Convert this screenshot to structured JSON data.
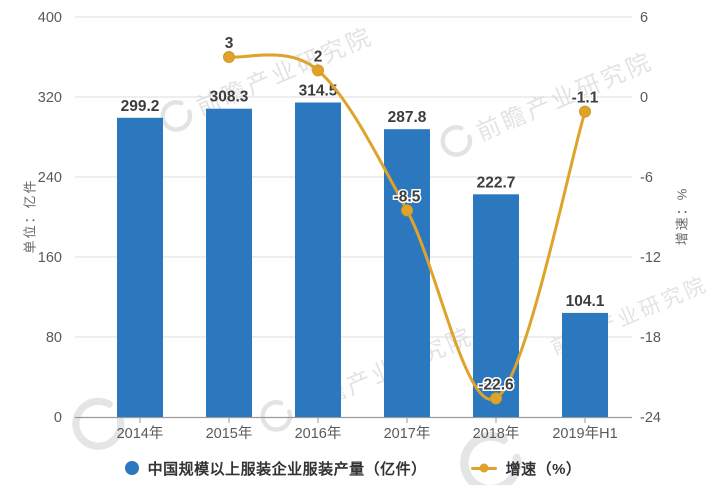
{
  "chart_data": {
    "type": "bar",
    "combo": "bar+line",
    "categories": [
      "2014年",
      "2015年",
      "2016年",
      "2017年",
      "2018年",
      "2019年H1"
    ],
    "series": [
      {
        "name": "中国规模以上服装企业服装产量（亿件）",
        "type": "bar",
        "axis": "left",
        "color": "#2b78be",
        "values": [
          299.2,
          308.3,
          314.5,
          287.8,
          222.7,
          104.1
        ]
      },
      {
        "name": "增速（%）",
        "type": "line",
        "axis": "right",
        "color": "#dfa32b",
        "values": [
          null,
          3,
          2,
          -8.5,
          -22.6,
          -1.1
        ]
      }
    ],
    "left_axis": {
      "name": "单位：亿件",
      "min": 0,
      "max": 400,
      "ticks": [
        0,
        80,
        160,
        240,
        320,
        400
      ]
    },
    "right_axis": {
      "name": "增速：%",
      "min": -24,
      "max": 6,
      "ticks": [
        -24,
        -18,
        -12,
        -6,
        0,
        6
      ]
    },
    "grid": true,
    "legend_position": "bottom",
    "title": ""
  },
  "watermark": {
    "text": "前瞻产业研究院"
  },
  "colors": {
    "bar": "#2b78be",
    "line": "#dfa32b",
    "data_label": "#3d3d3d",
    "axis_text": "#595959",
    "gridline": "#dcdcdc",
    "axis_line": "#9a9a9a",
    "background": "#ffffff"
  }
}
